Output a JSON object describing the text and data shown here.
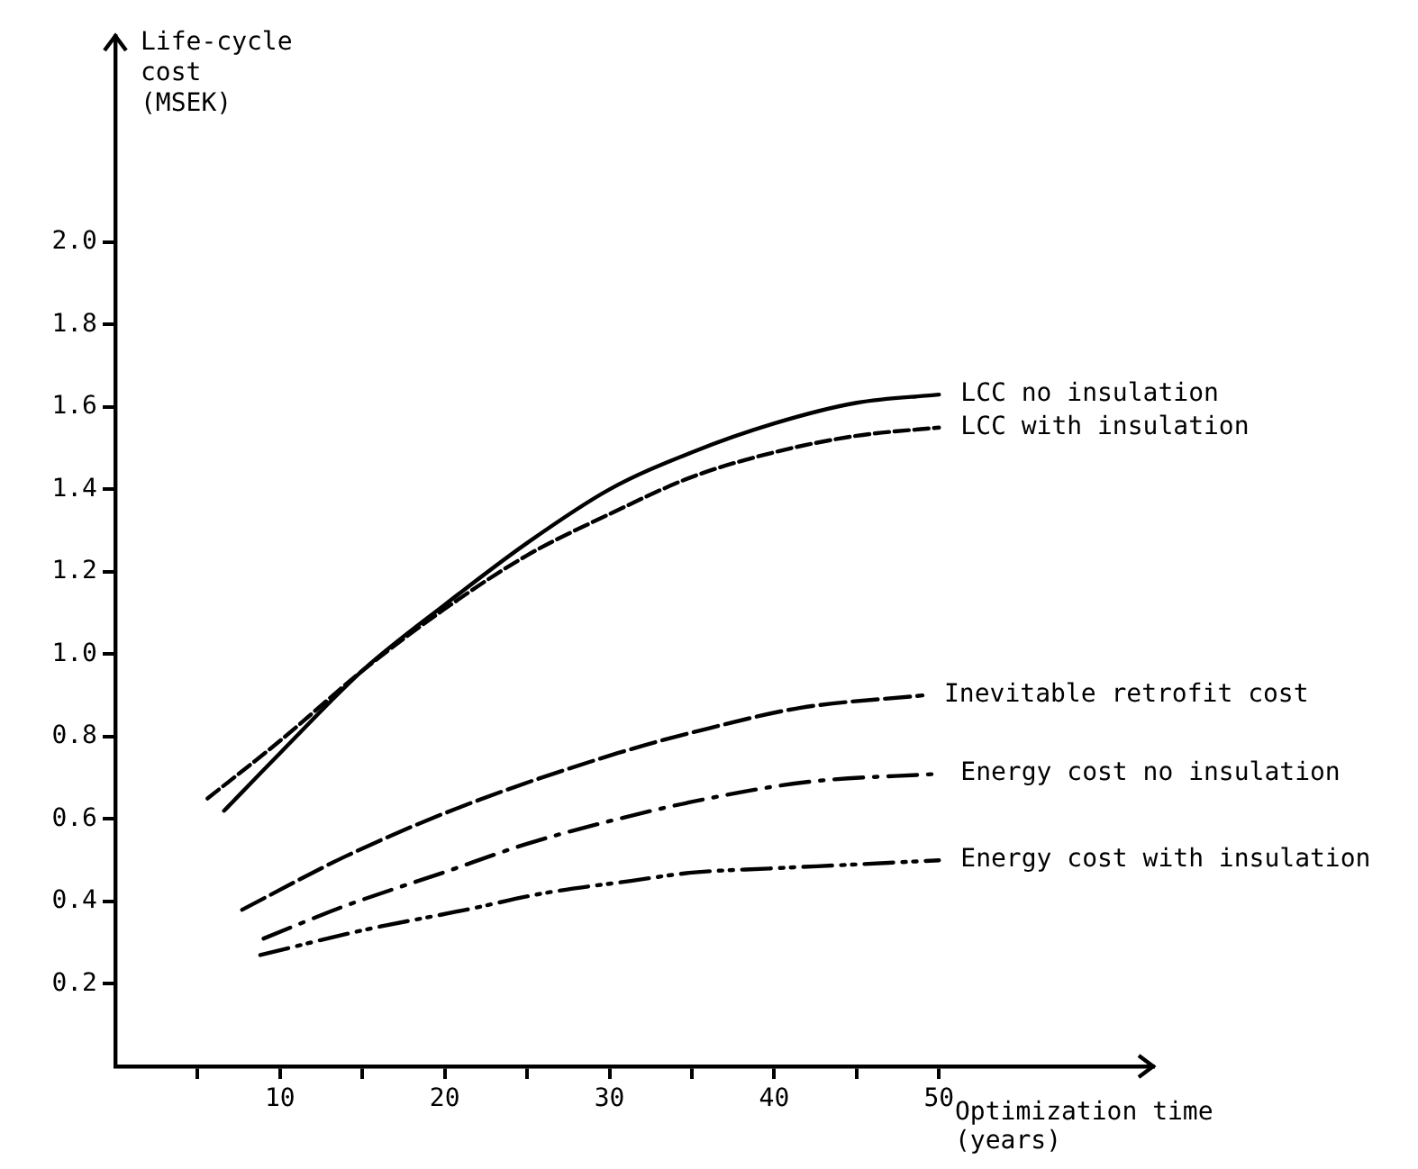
{
  "chart_data": {
    "type": "line",
    "xlabel": "Optimization time (years)",
    "ylabel": "Life-cycle cost (MSEK)",
    "xlim": [
      0,
      63
    ],
    "xticks": [
      {
        "value": 5,
        "label": null
      },
      10,
      {
        "value": 15,
        "label": null
      },
      20,
      {
        "value": 25,
        "label": null
      },
      30,
      {
        "value": 35,
        "label": null
      },
      40,
      {
        "value": 45,
        "label": null
      },
      50
    ],
    "ylim": [
      0,
      2.5
    ],
    "yticks": [
      0.2,
      0.4,
      0.6,
      0.8,
      {
        "value": 1,
        "label": "1.0"
      },
      1.2,
      1.4,
      1.6,
      1.8,
      {
        "value": 2,
        "label": "2.0"
      }
    ],
    "marker": "none",
    "series": [
      {
        "name": "LCC no insulation",
        "color": "#000000",
        "line_style": "solid",
        "x": [
          6.6,
          10,
          15,
          20,
          25,
          30,
          35,
          40,
          45,
          50
        ],
        "values": [
          0.62,
          0.76,
          0.96,
          1.12,
          1.27,
          1.4,
          1.49,
          1.56,
          1.61,
          1.63
        ]
      },
      {
        "name": "LCC with insulation",
        "color": "#000000",
        "line_style": "dashed",
        "x": [
          5.6,
          10,
          15,
          20,
          25,
          30,
          35,
          40,
          45,
          50
        ],
        "values": [
          0.65,
          0.79,
          0.96,
          1.11,
          1.24,
          1.34,
          1.43,
          1.49,
          1.53,
          1.55
        ]
      },
      {
        "name": "Inevitable retrofit cost",
        "color": "#000000",
        "line_style": "longdashed",
        "x": [
          7.7,
          14,
          21,
          30.5,
          36,
          41.6,
          49
        ],
        "values": [
          0.38,
          0.51,
          0.63,
          0.76,
          0.82,
          0.87,
          0.9
        ]
      },
      {
        "name": "Energy cost no insulation",
        "color": "#000000",
        "line_style": "dashdot",
        "x": [
          9,
          14,
          19.9,
          25,
          30.5,
          36,
          42,
          50
        ],
        "values": [
          0.31,
          0.39,
          0.47,
          0.54,
          0.6,
          0.65,
          0.69,
          0.71
        ]
      },
      {
        "name": "Energy cost with insulation",
        "color": "#000000",
        "line_style": "dashdotdot",
        "x": [
          8.8,
          15,
          21.3,
          26,
          31.3,
          35,
          39.7,
          45,
          50
        ],
        "values": [
          0.27,
          0.33,
          0.38,
          0.42,
          0.45,
          0.47,
          0.48,
          0.49,
          0.5
        ]
      }
    ]
  }
}
